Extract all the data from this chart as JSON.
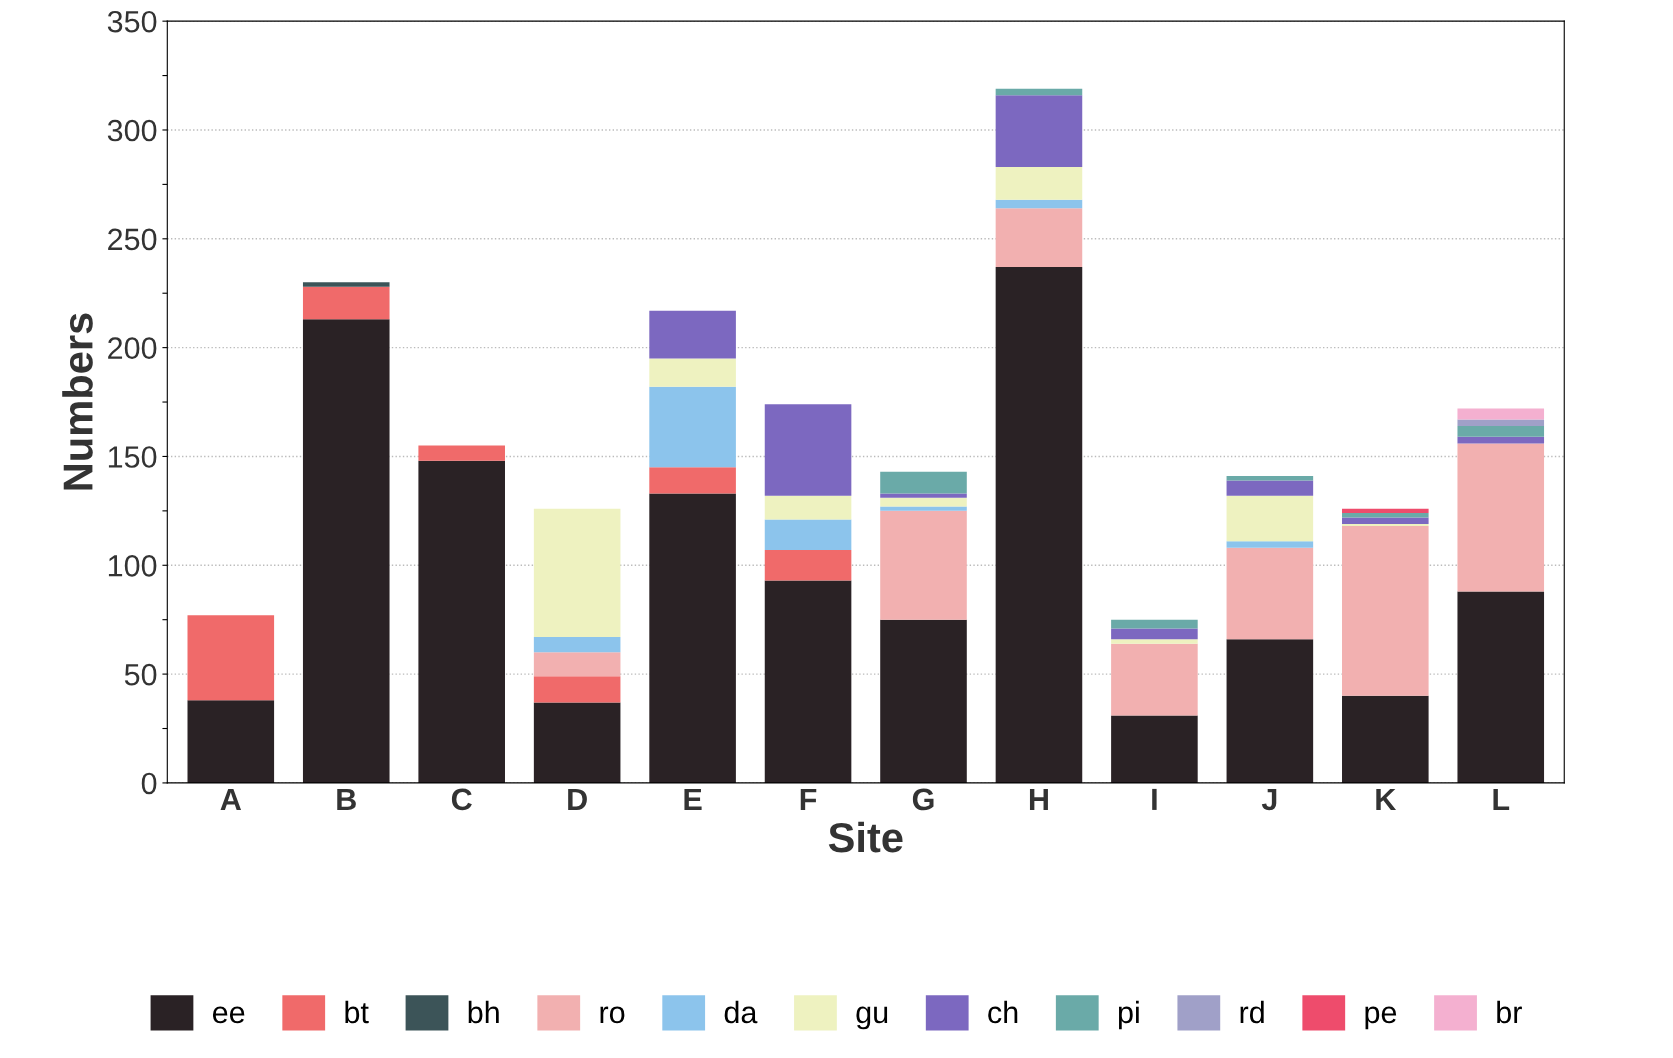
{
  "chart_data": {
    "type": "bar",
    "stacked": true,
    "xlabel": "Site",
    "ylabel": "Numbers",
    "categories": [
      "A",
      "B",
      "C",
      "D",
      "E",
      "F",
      "G",
      "H",
      "I",
      "J",
      "K",
      "L"
    ],
    "series": [
      {
        "name": "ee",
        "color": "#2a2225",
        "values": [
          38,
          213,
          148,
          37,
          133,
          93,
          75,
          237,
          31,
          66,
          40,
          88
        ]
      },
      {
        "name": "bt",
        "color": "#f06a6a",
        "values": [
          39,
          15,
          7,
          12,
          12,
          14,
          null,
          null,
          null,
          null,
          null,
          null
        ]
      },
      {
        "name": "bh",
        "color": "#3c5458",
        "values": [
          null,
          2,
          null,
          null,
          null,
          null,
          null,
          null,
          null,
          null,
          null,
          null
        ]
      },
      {
        "name": "ro",
        "color": "#f2b0b0",
        "values": [
          null,
          null,
          null,
          11,
          null,
          null,
          50,
          27,
          33,
          42,
          78,
          68
        ]
      },
      {
        "name": "da",
        "color": "#8cc4ec",
        "values": [
          null,
          null,
          null,
          7,
          37,
          14,
          2,
          4,
          null,
          3,
          null,
          null
        ]
      },
      {
        "name": "gu",
        "color": "#eef2c0",
        "values": [
          null,
          null,
          null,
          59,
          13,
          11,
          4,
          15,
          2,
          21,
          1,
          null
        ]
      },
      {
        "name": "ch",
        "color": "#7c68c0",
        "values": [
          null,
          null,
          null,
          null,
          22,
          42,
          2,
          33,
          5,
          7,
          3,
          3
        ]
      },
      {
        "name": "pi",
        "color": "#6aaaa8",
        "values": [
          null,
          null,
          null,
          null,
          null,
          null,
          10,
          3,
          4,
          2,
          2,
          5
        ]
      },
      {
        "name": "rd",
        "color": "#a0a0c8",
        "values": [
          null,
          null,
          null,
          null,
          null,
          null,
          null,
          null,
          null,
          null,
          null,
          3
        ]
      },
      {
        "name": "pe",
        "color": "#ee4c6c",
        "values": [
          null,
          null,
          null,
          null,
          null,
          null,
          null,
          null,
          null,
          null,
          2,
          null
        ]
      },
      {
        "name": "br",
        "color": "#f4b0d0",
        "values": [
          null,
          null,
          null,
          null,
          null,
          null,
          null,
          null,
          null,
          null,
          null,
          5
        ]
      }
    ],
    "ylim": [
      0,
      350
    ],
    "yticks": [
      0,
      {
        "value": 25,
        "label": null
      },
      50,
      {
        "value": 75,
        "label": null
      },
      100,
      {
        "value": 125,
        "label": null
      },
      150,
      {
        "value": 175,
        "label": null
      },
      200,
      {
        "value": 225,
        "label": null
      },
      250,
      {
        "value": 275,
        "label": null
      },
      300,
      {
        "value": 325,
        "label": null
      },
      350
    ],
    "grid": "y",
    "legend": "bottom"
  }
}
